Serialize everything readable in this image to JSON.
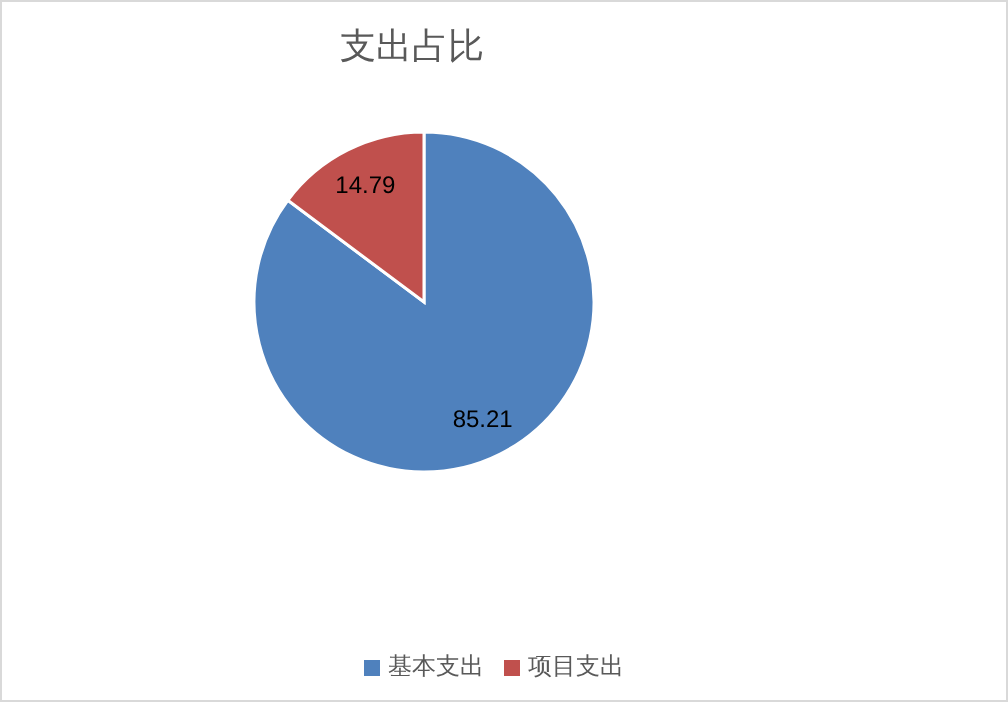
{
  "chart_data": {
    "type": "pie",
    "title": "支出占比",
    "categories": [
      "基本支出",
      "项目支出"
    ],
    "values": [
      85.21,
      14.79
    ],
    "colors": [
      "#4f81bd",
      "#c0504d"
    ],
    "data_labels": true,
    "legend": "bottom"
  }
}
